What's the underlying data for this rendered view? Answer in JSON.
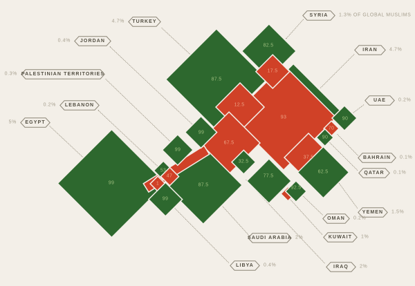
{
  "chart_data": {
    "type": "diamond-chart",
    "description_note": "1.3% OF GLOBAL MUSLIMS",
    "colors": {
      "green": "#2d682e",
      "red": "#d04127",
      "background": "#f3efe8"
    },
    "countries": [
      {
        "id": "turkey",
        "label": "TURKEY",
        "global_share": "4.7%",
        "green": "87.5",
        "red": "12.5"
      },
      {
        "id": "syria",
        "label": "SYRIA",
        "global_share": "1.3% OF GLOBAL MUSLIMS",
        "green": "82.5",
        "red": "17.5"
      },
      {
        "id": "jordan",
        "label": "JORDAN",
        "global_share": "0.4%",
        "green": "99",
        "red": null
      },
      {
        "id": "iran",
        "label": "IRAN",
        "global_share": "4.7%",
        "green": null,
        "red": "93"
      },
      {
        "id": "palestine",
        "label": "PALESTINIAN TERRITORIES",
        "global_share": "0.3%",
        "green": "99",
        "red": null
      },
      {
        "id": "lebanon",
        "label": "LEBANON",
        "global_share": "0.2%",
        "green": "53",
        "red": "47"
      },
      {
        "id": "uae",
        "label": "UAE",
        "global_share": "0.2%",
        "green": "90",
        "red": null
      },
      {
        "id": "egypt",
        "label": "EGYPT",
        "global_share": "5%",
        "green": "99",
        "red": "1"
      },
      {
        "id": "bahrain",
        "label": "BAHRAIN",
        "global_share": "0.1%",
        "green": null,
        "red": "70"
      },
      {
        "id": "qatar",
        "label": "QATAR",
        "global_share": "0.1%",
        "green": "90",
        "red": null
      },
      {
        "id": "oman",
        "label": "OMAN",
        "global_share": "0.2%",
        "green": "92.5",
        "red": null
      },
      {
        "id": "yemen",
        "label": "YEMEN",
        "global_share": "1.5%",
        "green": "62.5",
        "red": "37.5"
      },
      {
        "id": "kuwait",
        "label": "KUWAIT",
        "global_share": "1%",
        "green": "77.5",
        "red": null
      },
      {
        "id": "saudi",
        "label": "SAUDI ARABIA",
        "global_share": "2%",
        "green": "87.5",
        "red": null
      },
      {
        "id": "iraq",
        "label": "IRAQ",
        "global_share": "2%",
        "green": "32.5",
        "red": "67.5"
      },
      {
        "id": "libya",
        "label": "LIBYA",
        "global_share": "0.4%",
        "green": "99",
        "red": null
      }
    ]
  }
}
